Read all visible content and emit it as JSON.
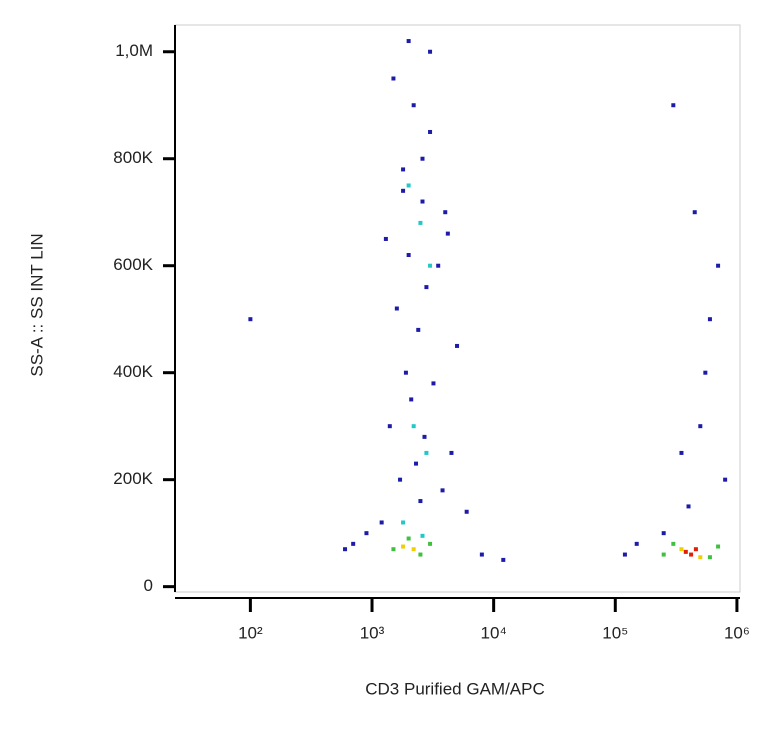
{
  "chart_data": {
    "type": "scatter",
    "x_label": "CD3 Purified GAM/APC",
    "y_label": "SS-A :: SS INT LIN",
    "x_log": true,
    "grid": false,
    "xlim": [
      24,
      1060000
    ],
    "xticks": [
      {
        "value": 100,
        "label": "10²"
      },
      {
        "value": 1000,
        "label": "10³"
      },
      {
        "value": 10000,
        "label": "10⁴"
      },
      {
        "value": 100000,
        "label": "10⁵"
      },
      {
        "value": 1000000,
        "label": "10⁶"
      }
    ],
    "ylim": [
      -10000,
      1050000
    ],
    "yticks": [
      0,
      {
        "value": 200000,
        "label": "200K"
      },
      {
        "value": 400000,
        "label": "400K"
      },
      {
        "value": 600000,
        "label": "600K"
      },
      {
        "value": 800000,
        "label": "800K"
      },
      {
        "value": 1000000,
        "label": "1,0M"
      }
    ],
    "series": [
      {
        "color": "#1c1ca8",
        "x": [
          1500,
          2200,
          3000,
          1800,
          2600,
          4000,
          1300,
          2000,
          3500,
          2800,
          1600,
          2400,
          5000,
          1900,
          3200,
          2100,
          1400,
          2700,
          4500,
          2300,
          1700,
          3800,
          2500,
          6000,
          1200,
          900,
          700,
          8000,
          12000,
          600,
          3000,
          2000,
          2600,
          1800,
          4200,
          300000,
          450000,
          600000,
          500000,
          350000,
          700000,
          550000,
          400000,
          800000,
          250000,
          150000,
          120000,
          100
        ],
        "values": [
          950000,
          900000,
          850000,
          780000,
          720000,
          700000,
          650000,
          620000,
          600000,
          560000,
          520000,
          480000,
          450000,
          400000,
          380000,
          350000,
          300000,
          280000,
          250000,
          230000,
          200000,
          180000,
          160000,
          140000,
          120000,
          100000,
          80000,
          60000,
          50000,
          70000,
          1000000,
          1020000,
          800000,
          740000,
          660000,
          900000,
          700000,
          500000,
          300000,
          250000,
          600000,
          400000,
          150000,
          200000,
          100000,
          80000,
          60000,
          500000
        ]
      },
      {
        "color": "#20c8c8",
        "x": [
          2000,
          2500,
          3000,
          2200,
          2800,
          1800,
          2600
        ],
        "values": [
          750000,
          680000,
          600000,
          300000,
          250000,
          120000,
          95000
        ]
      },
      {
        "color": "#40c040",
        "x": [
          1500,
          2000,
          2500,
          3000,
          250000,
          300000,
          600000,
          700000
        ],
        "values": [
          70000,
          90000,
          60000,
          80000,
          60000,
          80000,
          55000,
          75000
        ]
      },
      {
        "color": "#f0d000",
        "x": [
          1800,
          2200,
          350000,
          500000
        ],
        "values": [
          75000,
          70000,
          70000,
          55000
        ]
      },
      {
        "color": "#e02000",
        "x": [
          380000,
          420000,
          460000
        ],
        "values": [
          65000,
          60000,
          70000
        ]
      }
    ]
  }
}
